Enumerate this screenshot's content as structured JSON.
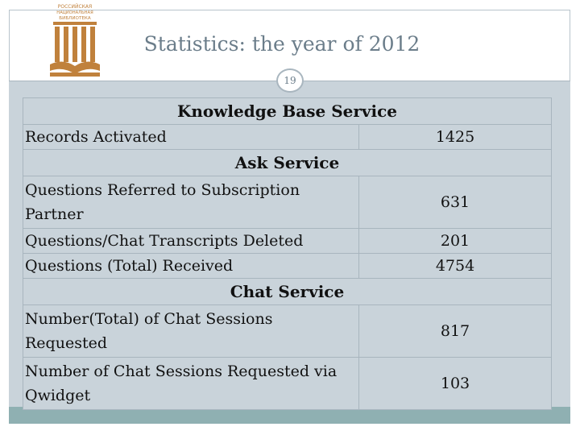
{
  "slide": {
    "title": "Statistics: the year of 2012",
    "page_number": "19",
    "logo_text": [
      "РОССИЙСКАЯ",
      "НАЦИОНАЛЬНАЯ",
      "БИБЛИОТЕКА"
    ]
  },
  "sections": [
    {
      "heading": "Knowledge Base Service",
      "rows": [
        {
          "label": "Records Activated",
          "value": "1425"
        }
      ]
    },
    {
      "heading": "Ask Service",
      "rows": [
        {
          "label": "Questions Referred to Subscription Partner",
          "value": "631"
        },
        {
          "label": "Questions/Chat Transcripts Deleted",
          "value": "201"
        },
        {
          "label": "Questions (Total) Received",
          "value": "4754"
        }
      ]
    },
    {
      "heading": "Chat Service",
      "rows": [
        {
          "label": "Number(Total) of Chat Sessions Requested",
          "value": "817"
        },
        {
          "label": "Number of Chat Sessions Requested via Qwidget",
          "value": "103"
        }
      ]
    }
  ],
  "colors": {
    "title": "#6b7d8a",
    "panel": "#c9d3da",
    "footer": "#8fb0b2",
    "logo": "#c0813c"
  }
}
